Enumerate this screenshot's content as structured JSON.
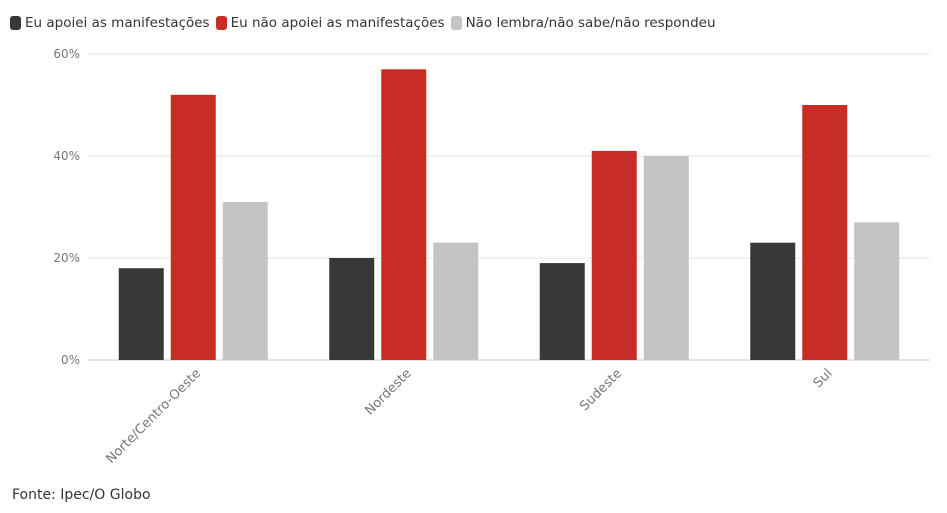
{
  "legend": [
    {
      "label": "Eu apoiei as manifestações",
      "color": "#383838"
    },
    {
      "label": "Eu não apoiei as manifestações",
      "color": "#c82d25"
    },
    {
      "label": "Não lembra/não sabe/não respondeu",
      "color": "#c4c4c4"
    }
  ],
  "source": "Fonte: Ipec/O Globo",
  "chart_data": {
    "type": "bar",
    "categories": [
      "Norte/Centro-Oeste",
      "Nordeste",
      "Sudeste",
      "Sul"
    ],
    "series": [
      {
        "name": "Eu apoiei as manifestações",
        "color": "#383838",
        "values": [
          18,
          20,
          19,
          23
        ]
      },
      {
        "name": "Eu não apoiei as manifestações",
        "color": "#c82d25",
        "values": [
          52,
          57,
          41,
          50
        ]
      },
      {
        "name": "Não lembra/não sabe/não respondeu",
        "color": "#c4c4c4",
        "values": [
          31,
          23,
          40,
          27
        ]
      }
    ],
    "yticks": [
      "0%",
      "20%",
      "40%",
      "60%"
    ],
    "ylim": [
      0,
      60
    ],
    "title": "",
    "xlabel": "",
    "ylabel": "",
    "grid": true,
    "legend_position": "top-left"
  }
}
